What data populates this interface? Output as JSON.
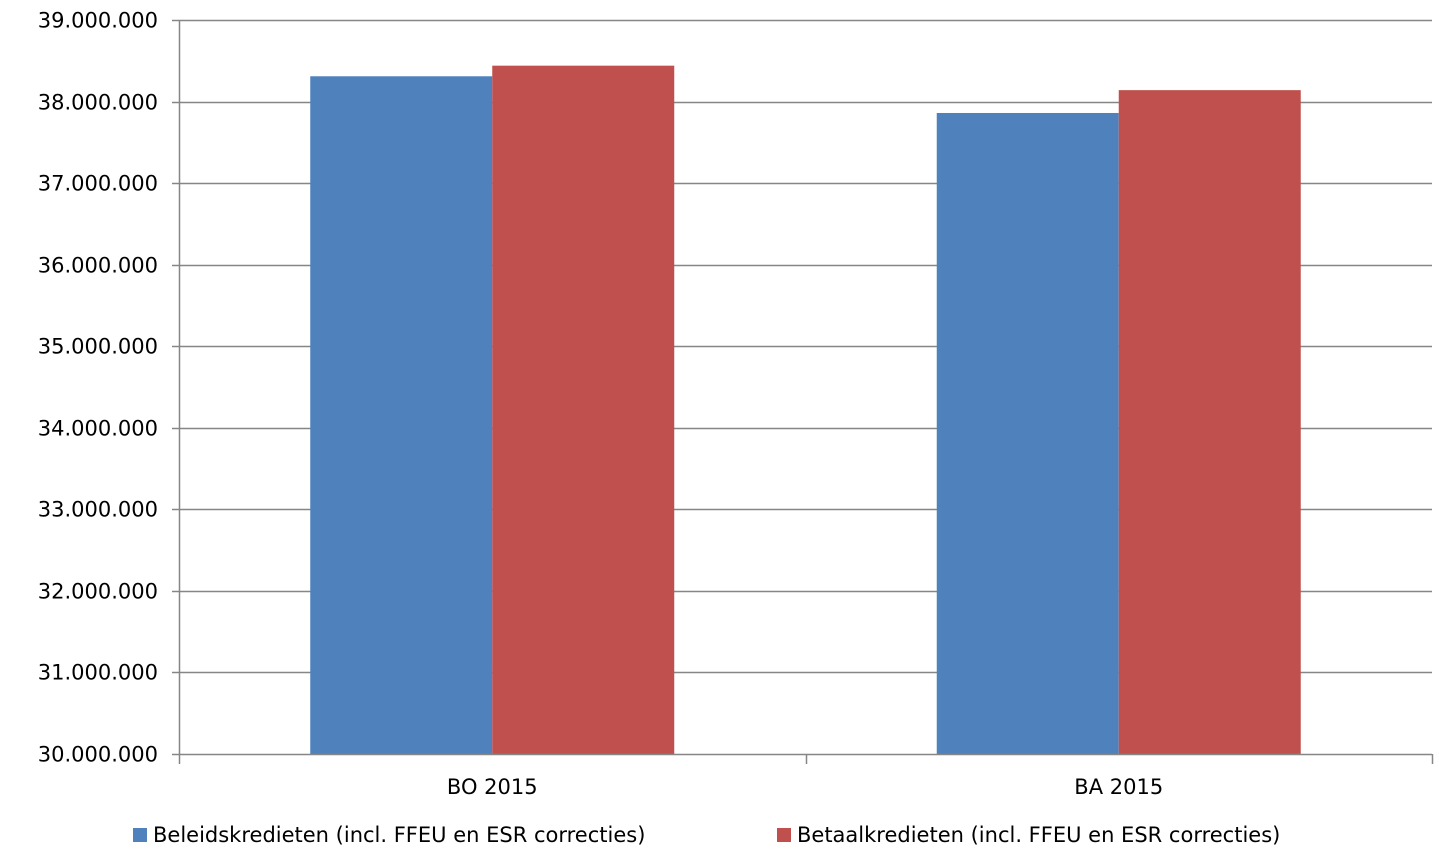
{
  "chart_data": {
    "type": "bar",
    "categories": [
      "BO 2015",
      "BA 2015"
    ],
    "series": [
      {
        "name": "Beleidskredieten (incl. FFEU en ESR correcties)",
        "color": "#4f81bd",
        "values": [
          38310000,
          37860000
        ]
      },
      {
        "name": "Betaalkredieten (incl. FFEU en ESR correcties)",
        "color": "#c0504d",
        "values": [
          38440000,
          38140000
        ]
      }
    ],
    "ylim": [
      30000000,
      39000000
    ],
    "yticks": [
      30000000,
      31000000,
      32000000,
      33000000,
      34000000,
      35000000,
      36000000,
      37000000,
      38000000,
      39000000
    ],
    "ytick_labels": [
      "30.000.000",
      "31.000.000",
      "32.000.000",
      "33.000.000",
      "34.000.000",
      "35.000.000",
      "36.000.000",
      "37.000.000",
      "38.000.000",
      "39.000.000"
    ],
    "grid": true,
    "legend_position": "bottom",
    "title": "",
    "xlabel": "",
    "ylabel": ""
  }
}
